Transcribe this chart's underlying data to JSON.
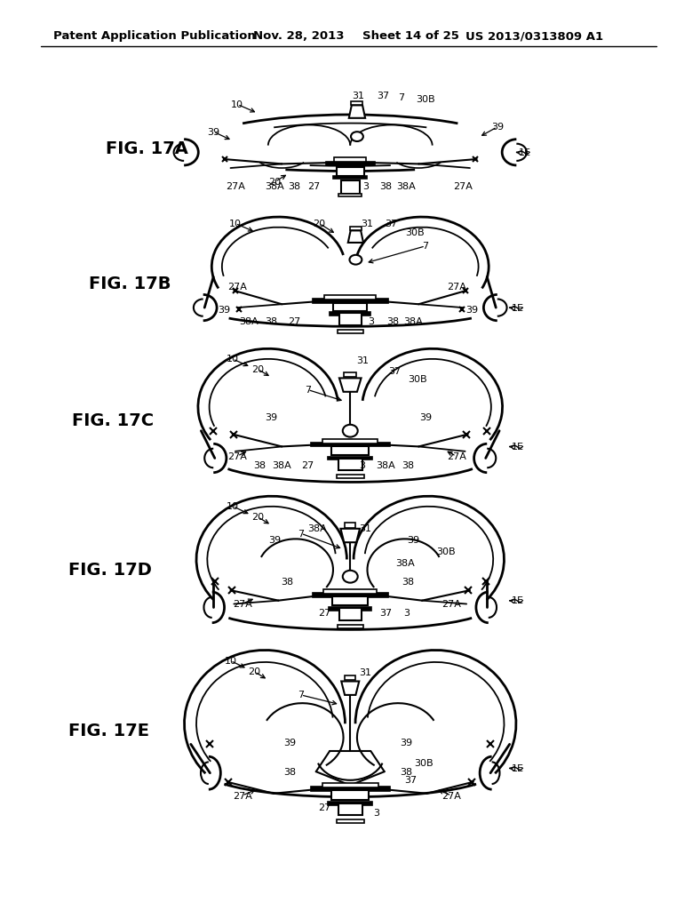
{
  "background_color": "#ffffff",
  "header_text": "Patent Application Publication",
  "header_date": "Nov. 28, 2013",
  "header_sheet": "Sheet 14 of 25",
  "header_patent": "US 2013/0313809 A1"
}
